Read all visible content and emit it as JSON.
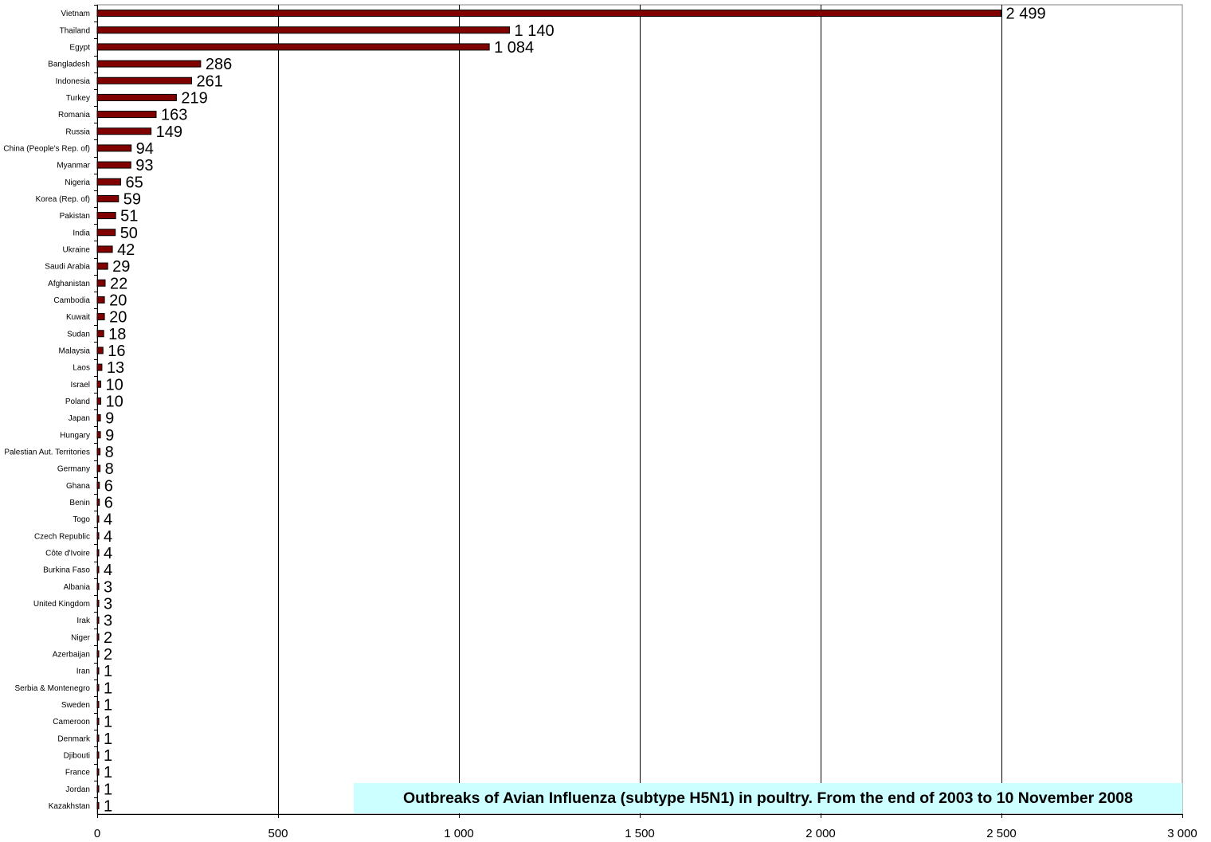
{
  "chart_data": {
    "type": "bar",
    "orientation": "horizontal",
    "title": "Outbreaks of Avian Influenza (subtype H5N1) in poultry. From the end of 2003 to 10 November 2008",
    "xlabel": "",
    "ylabel": "",
    "xlim": [
      0,
      3000
    ],
    "x_ticks": [
      0,
      500,
      1000,
      1500,
      2000,
      2500,
      3000
    ],
    "x_tick_labels": [
      "0",
      "500",
      "1 000",
      "1 500",
      "2 000",
      "2 500",
      "3 000"
    ],
    "grid": "vertical",
    "legend": "none",
    "bar_color": "#800000",
    "title_background": "#ccffff",
    "categories": [
      "Vietnam",
      "Thailand",
      "Egypt",
      "Bangladesh",
      "Indonesia",
      "Turkey",
      "Romania",
      "Russia",
      "China (People's Rep. of)",
      "Myanmar",
      "Nigeria",
      "Korea (Rep. of)",
      "Pakistan",
      "India",
      "Ukraine",
      "Saudi Arabia",
      "Afghanistan",
      "Cambodia",
      "Kuwait",
      "Sudan",
      "Malaysia",
      "Laos",
      "Israel",
      "Poland",
      "Japan",
      "Hungary",
      "Palestian Aut. Territories",
      "Germany",
      "Ghana",
      "Benin",
      "Togo",
      "Czech Republic",
      "Côte d'Ivoire",
      "Burkina Faso",
      "Albania",
      "United Kingdom",
      "Irak",
      "Niger",
      "Azerbaijan",
      "Iran",
      "Serbia & Montenegro",
      "Sweden",
      "Cameroon",
      "Denmark",
      "Djibouti",
      "France",
      "Jordan",
      "Kazakhstan"
    ],
    "values": [
      2499,
      1140,
      1084,
      286,
      261,
      219,
      163,
      149,
      94,
      93,
      65,
      59,
      51,
      50,
      42,
      29,
      22,
      20,
      20,
      18,
      16,
      13,
      10,
      10,
      9,
      9,
      8,
      8,
      6,
      6,
      4,
      4,
      4,
      4,
      3,
      3,
      3,
      2,
      2,
      1,
      1,
      1,
      1,
      1,
      1,
      1,
      1,
      1
    ],
    "value_labels": [
      "2 499",
      "1 140",
      "1 084",
      "286",
      "261",
      "219",
      "163",
      "149",
      "94",
      "93",
      "65",
      "59",
      "51",
      "50",
      "42",
      "29",
      "22",
      "20",
      "20",
      "18",
      "16",
      "13",
      "10",
      "10",
      "9",
      "9",
      "8",
      "8",
      "6",
      "6",
      "4",
      "4",
      "4",
      "4",
      "3",
      "3",
      "3",
      "2",
      "2",
      "1",
      "1",
      "1",
      "1",
      "1",
      "1",
      "1",
      "1",
      "1"
    ]
  }
}
